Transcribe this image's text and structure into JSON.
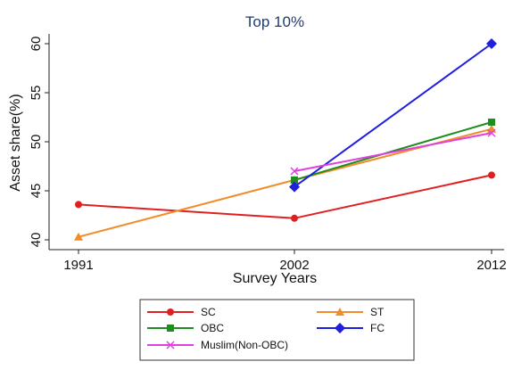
{
  "chart_data": {
    "type": "line",
    "title": "Top 10%",
    "xlabel": "Survey Years",
    "ylabel": "Asset share(%)",
    "categories": [
      "1991",
      "2002",
      "2012"
    ],
    "ylim": [
      39,
      61
    ],
    "yticks": [
      40,
      45,
      50,
      55,
      60
    ],
    "grid": false,
    "legend_position": "bottom",
    "series": [
      {
        "name": "SC",
        "color": "#e02020",
        "marker": "circle",
        "values": [
          43.6,
          42.2,
          46.6
        ]
      },
      {
        "name": "ST",
        "color": "#f28c28",
        "marker": "triangle",
        "values": [
          40.3,
          46.1,
          51.3
        ]
      },
      {
        "name": "OBC",
        "color": "#1e8c1e",
        "marker": "square",
        "values": [
          null,
          46.1,
          52.0
        ]
      },
      {
        "name": "FC",
        "color": "#1f1fe0",
        "marker": "diamond",
        "values": [
          null,
          45.4,
          60.0
        ]
      },
      {
        "name": "Muslim(Non-OBC)",
        "color": "#e040e0",
        "marker": "x",
        "values": [
          null,
          47.0,
          50.9
        ]
      }
    ]
  }
}
